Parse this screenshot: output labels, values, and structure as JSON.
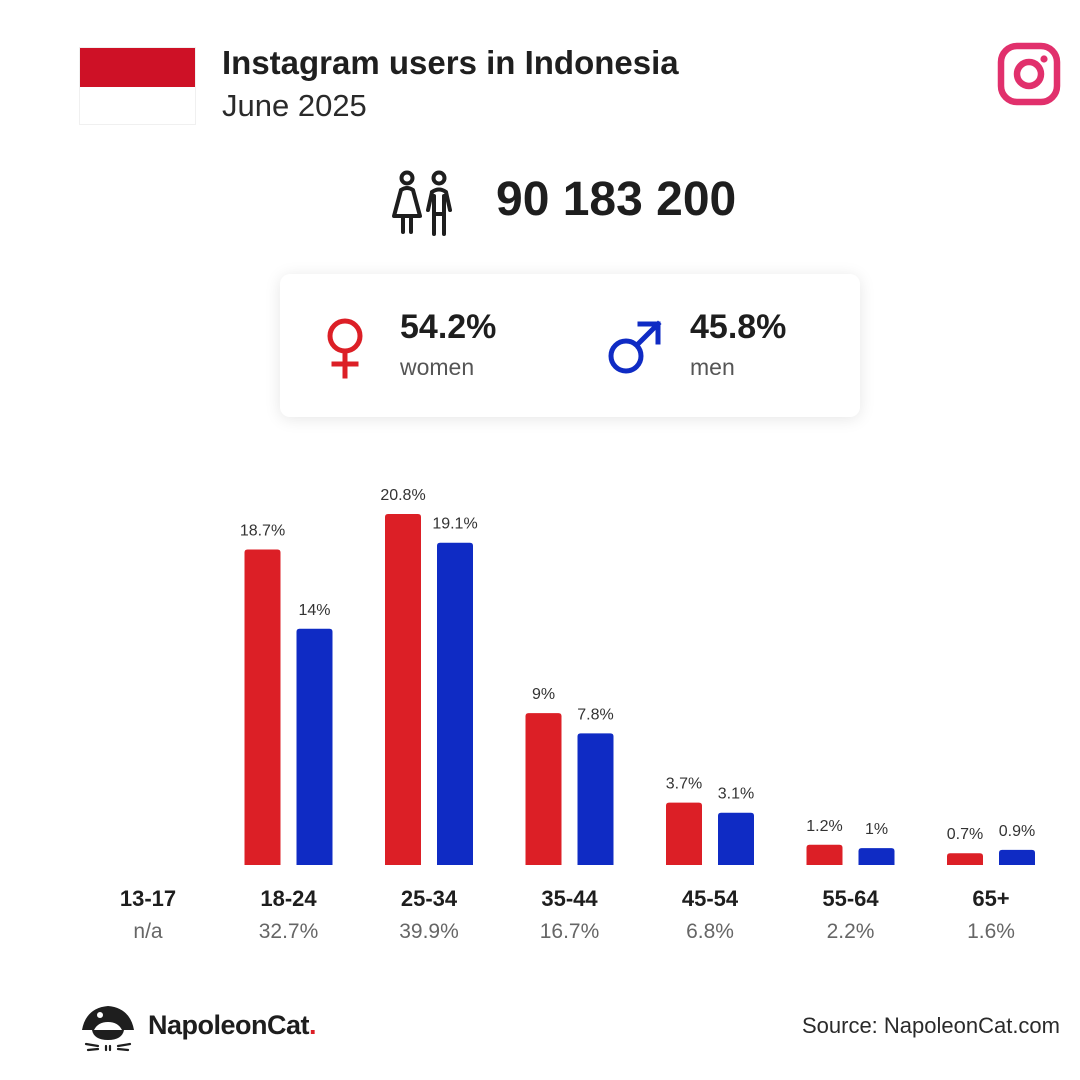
{
  "header": {
    "title": "Instagram users in Indonesia",
    "subtitle": "June 2025"
  },
  "total_users": "90 183 200",
  "gender": {
    "women": {
      "percent": "54.2%",
      "label": "women"
    },
    "men": {
      "percent": "45.8%",
      "label": "men"
    }
  },
  "colors": {
    "women": "#dc1f26",
    "men": "#0f2bc4",
    "flag_red": "#ce1126",
    "instagram": "#e1306c"
  },
  "icons": {
    "flag": "flag-indonesia-icon",
    "instagram": "instagram-icon",
    "people": "people-icon",
    "female": "female-symbol-icon",
    "male": "male-symbol-icon",
    "logo": "napoleoncat-logo-icon"
  },
  "chart_data": {
    "type": "bar",
    "categories": [
      "13-17",
      "18-24",
      "25-34",
      "35-44",
      "45-54",
      "55-64",
      "65+"
    ],
    "category_totals": [
      "n/a",
      "32.7%",
      "39.9%",
      "16.7%",
      "6.8%",
      "2.2%",
      "1.6%"
    ],
    "series": [
      {
        "name": "women",
        "values": [
          null,
          18.7,
          20.8,
          9,
          3.7,
          1.2,
          0.7
        ],
        "labels": [
          "",
          "18.7%",
          "20.8%",
          "9%",
          "3.7%",
          "1.2%",
          "0.7%"
        ]
      },
      {
        "name": "men",
        "values": [
          null,
          14,
          19.1,
          7.8,
          3.1,
          1,
          0.9
        ],
        "labels": [
          "",
          "14%",
          "19.1%",
          "7.8%",
          "3.1%",
          "1%",
          "0.9%"
        ]
      }
    ],
    "ylim": [
      0,
      20.8
    ],
    "grid": false,
    "legend": "none"
  },
  "footer": {
    "brand": "NapoleonCat",
    "brand_dot": ".",
    "source": "Source: NapoleonCat.com"
  }
}
